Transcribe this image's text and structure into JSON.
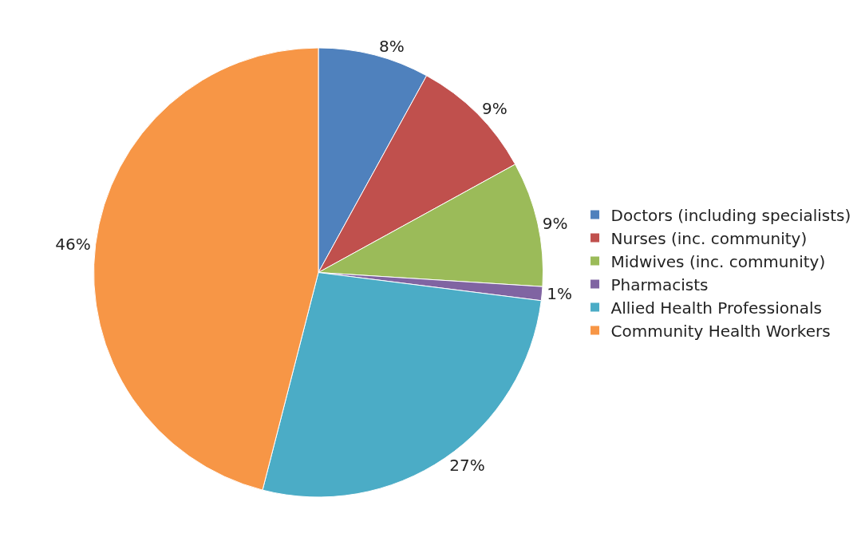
{
  "chart_data": {
    "type": "pie",
    "categories": [
      "Doctors (including specialists)",
      "Nurses (inc. community)",
      "Midwives (inc. community)",
      "Pharmacists",
      "Allied Health Professionals",
      "Community Health Workers"
    ],
    "values": [
      8,
      9,
      9,
      1,
      27,
      46
    ],
    "value_labels": [
      "8%",
      "9%",
      "9%",
      "1%",
      "27%",
      "46%"
    ],
    "colors": [
      "#4f81bd",
      "#c0504d",
      "#9bbb59",
      "#8064a2",
      "#4bacc6",
      "#f79646"
    ],
    "legend": "right"
  }
}
